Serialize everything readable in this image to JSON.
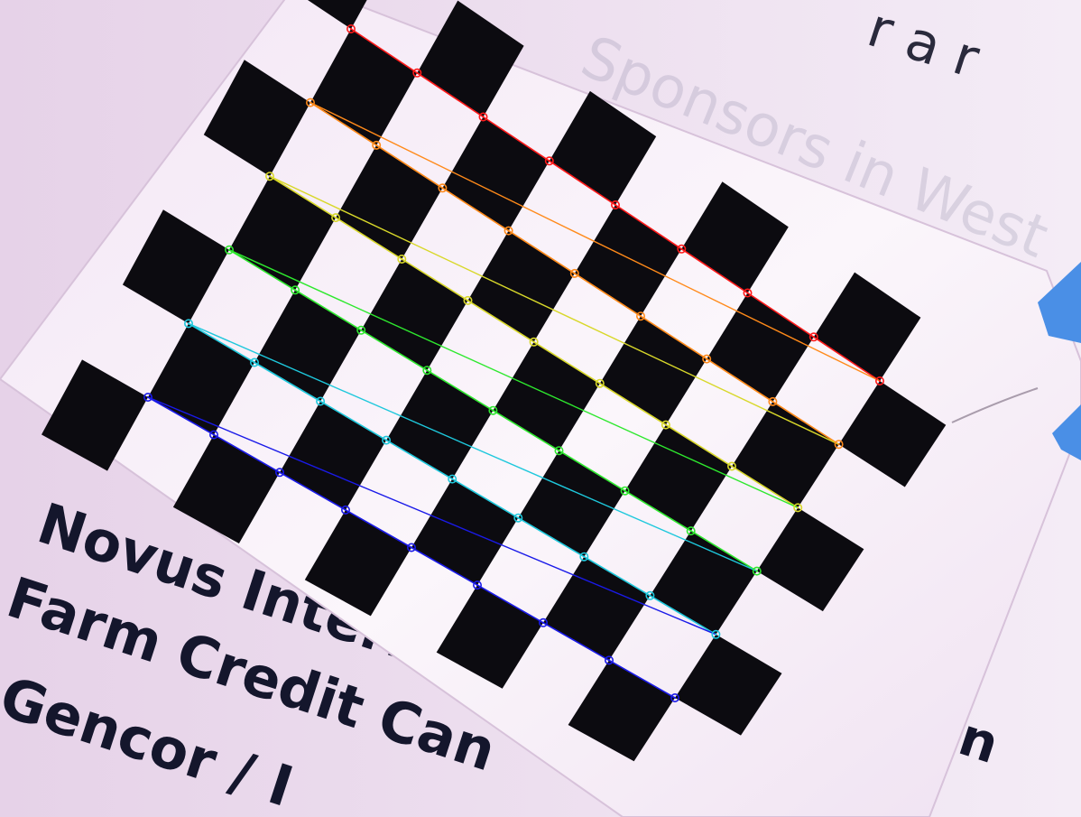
{
  "photo": {
    "background_texts": [
      {
        "text": "Novus International"
      },
      {
        "text": "Farm Credit Can"
      },
      {
        "text": "Gencor / I"
      },
      {
        "text": "tion"
      }
    ],
    "top_fragment": {
      "text": "r a r"
    },
    "ghost_text": {
      "text": "Sponsors in West"
    },
    "checkerboard": {
      "board_squares_across": 10,
      "board_squares_down": 7,
      "inner_corners_per_row": 9,
      "inner_corner_rows": 6,
      "row_colors": [
        "#ff1a1a",
        "#ff8a1a",
        "#d8d82a",
        "#2ee82e",
        "#1ec8dc",
        "#1a1ae8"
      ]
    },
    "colors": {
      "paper": "#f6eef8",
      "paper_shadow": "#d9c6dd",
      "ink": "#14162c",
      "square": "#0c0b10",
      "tape": "#4a8fe6"
    }
  }
}
